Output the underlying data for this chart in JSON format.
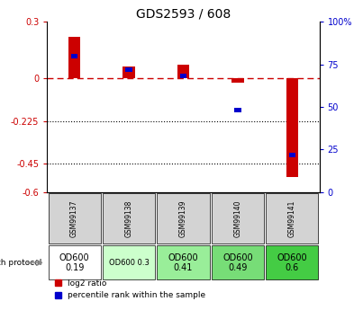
{
  "title": "GDS2593 / 608",
  "samples": [
    "GSM99137",
    "GSM99138",
    "GSM99139",
    "GSM99140",
    "GSM99141"
  ],
  "log2_ratio": [
    0.22,
    0.065,
    0.075,
    -0.02,
    -0.52
  ],
  "percentile_rank": [
    80,
    72,
    68,
    48,
    22
  ],
  "ylim_left": [
    -0.6,
    0.3
  ],
  "ylim_right": [
    0,
    100
  ],
  "yticks_left": [
    0.3,
    0,
    -0.225,
    -0.45,
    -0.6
  ],
  "yticks_right": [
    100,
    75,
    50,
    25,
    0
  ],
  "dotted_lines": [
    -0.225,
    -0.45
  ],
  "bar_width": 0.22,
  "red_color": "#cc0000",
  "blue_color": "#0000cc",
  "dashed_color": "#cc0000",
  "growth_protocol_labels": [
    "OD600\n0.19",
    "OD600 0.3",
    "OD600\n0.41",
    "OD600\n0.49",
    "OD600\n0.6"
  ],
  "proto_colors": [
    "#ffffff",
    "#ccffcc",
    "#99ee99",
    "#77dd77",
    "#44cc44"
  ],
  "cell_fontsize": [
    7,
    6,
    7,
    7,
    7
  ],
  "legend_red": "log2 ratio",
  "legend_blue": "percentile rank within the sample"
}
